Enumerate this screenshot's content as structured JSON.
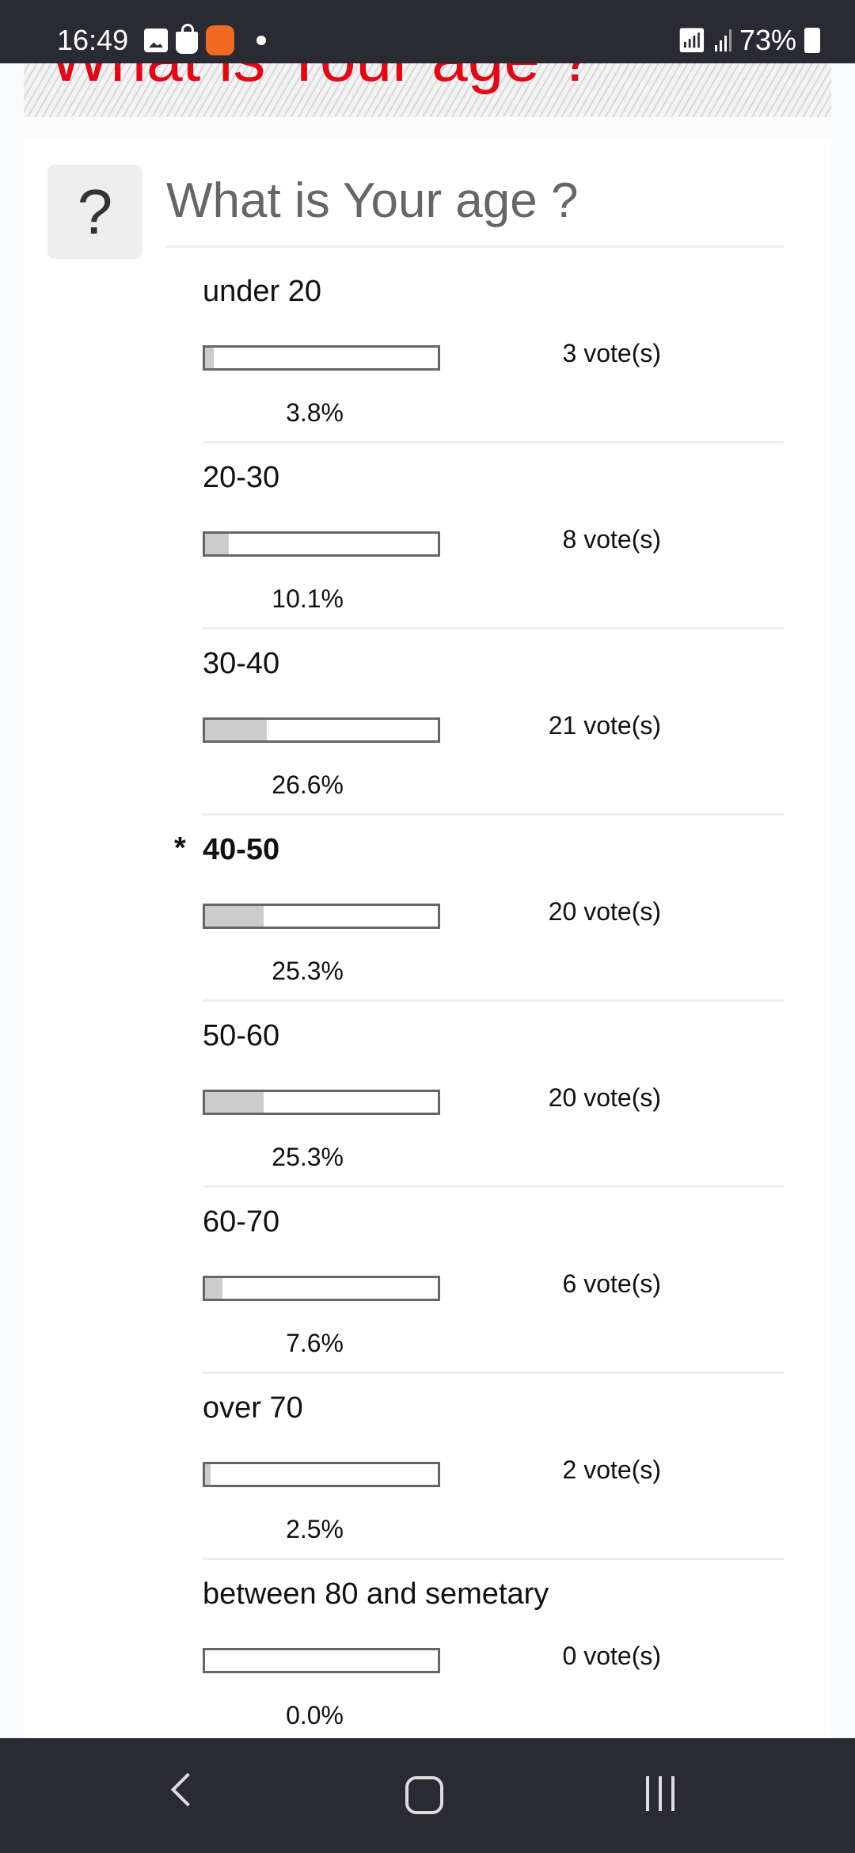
{
  "status_bar": {
    "time": "16:49",
    "battery": "73%"
  },
  "header": {
    "title": "What is Your age ?",
    "title_color": "#e30613"
  },
  "poll": {
    "icon": "?",
    "question": "What is Your age ?",
    "options": [
      {
        "label": "under 20",
        "votes": "3 vote(s)",
        "percent": "3.8%",
        "fill": 3.8,
        "selected": false
      },
      {
        "label": "20-30",
        "votes": "8 vote(s)",
        "percent": "10.1%",
        "fill": 10.1,
        "selected": false
      },
      {
        "label": "30-40",
        "votes": "21 vote(s)",
        "percent": "26.6%",
        "fill": 26.6,
        "selected": false
      },
      {
        "label": "40-50",
        "votes": "20 vote(s)",
        "percent": "25.3%",
        "fill": 25.3,
        "selected": true,
        "marker": "*"
      },
      {
        "label": "50-60",
        "votes": "20 vote(s)",
        "percent": "25.3%",
        "fill": 25.3,
        "selected": false
      },
      {
        "label": "60-70",
        "votes": "6 vote(s)",
        "percent": "7.6%",
        "fill": 7.6,
        "selected": false
      },
      {
        "label": "over 70",
        "votes": "2 vote(s)",
        "percent": "2.5%",
        "fill": 2.5,
        "selected": false
      },
      {
        "label": "between 80 and semetary",
        "votes": "0 vote(s)",
        "percent": "0.0%",
        "fill": 0,
        "selected": false
      }
    ]
  },
  "nav": {
    "back": "back-icon",
    "home": "home-icon",
    "recents": "recents-icon"
  }
}
